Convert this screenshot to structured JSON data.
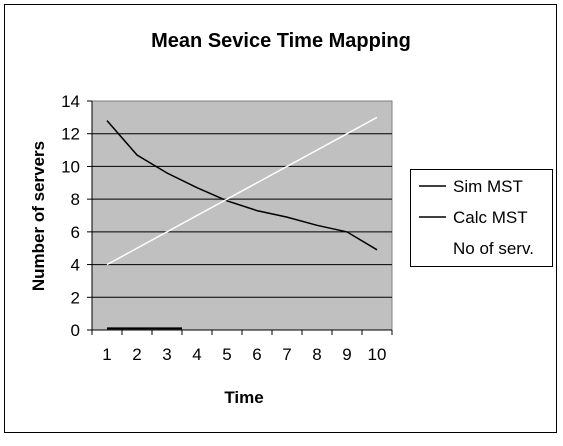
{
  "chart_data": {
    "type": "line",
    "title": "Mean Sevice Time Mapping",
    "xlabel": "Time",
    "ylabel": "Number of servers",
    "x": [
      1,
      2,
      3,
      4,
      5,
      6,
      7,
      8,
      9,
      10
    ],
    "ylim": [
      0,
      14
    ],
    "yticks": [
      0,
      2,
      4,
      6,
      8,
      10,
      12,
      14
    ],
    "grid": true,
    "legend_position": "right",
    "plot_background": "#c0c0c0",
    "series": [
      {
        "name": "Sim MST",
        "color": "#000000",
        "x": [
          1,
          2,
          3,
          4,
          5,
          6,
          7,
          8,
          9,
          10
        ],
        "values": [
          12.8,
          10.7,
          9.6,
          8.7,
          7.9,
          7.3,
          6.9,
          6.4,
          6.0,
          4.9
        ]
      },
      {
        "name": "Calc MST",
        "color": "#000000",
        "x": [
          1,
          2,
          3,
          3.5
        ],
        "values": [
          0.1,
          0.1,
          0.1,
          0.1
        ]
      },
      {
        "name": "No of serv.",
        "color": "#ffffff",
        "x": [
          1,
          10
        ],
        "values": [
          4,
          13
        ]
      }
    ]
  }
}
